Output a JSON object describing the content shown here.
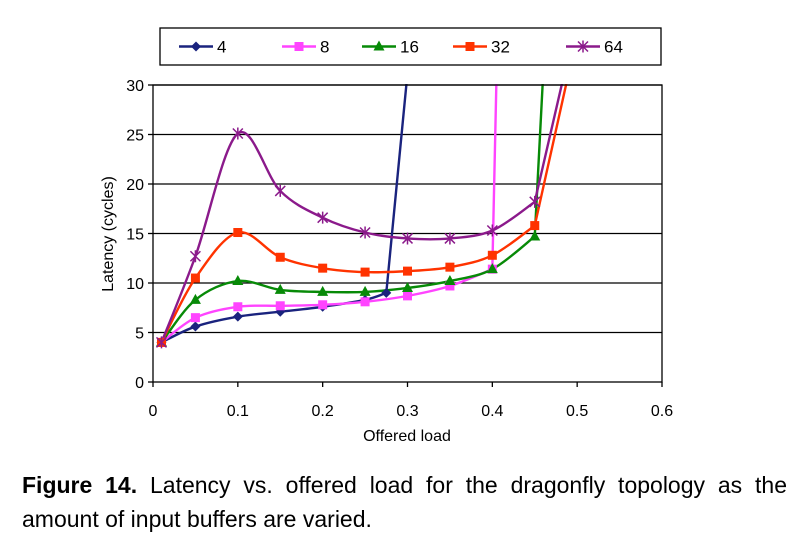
{
  "chart_data": {
    "type": "line",
    "title": "",
    "xlabel": "Offered load",
    "ylabel": "Latency (cycles)",
    "xlim": [
      0,
      0.6
    ],
    "ylim": [
      0,
      30
    ],
    "x_ticks": [
      "0",
      "0.1",
      "0.2",
      "0.3",
      "0.4",
      "0.5",
      "0.6"
    ],
    "y_ticks": [
      "0",
      "5",
      "10",
      "15",
      "20",
      "25",
      "30"
    ],
    "grid": "horizontal",
    "legend_position": "top",
    "series": [
      {
        "name": "4",
        "color": "#1a237e",
        "marker": "diamond",
        "x": [
          0.01,
          0.05,
          0.1,
          0.15,
          0.2,
          0.25,
          0.275,
          0.3
        ],
        "y": [
          4.0,
          5.6,
          6.6,
          7.1,
          7.6,
          8.3,
          9.0,
          30
        ]
      },
      {
        "name": "8",
        "color": "#ff44ff",
        "marker": "square",
        "x": [
          0.01,
          0.05,
          0.1,
          0.15,
          0.2,
          0.25,
          0.3,
          0.35,
          0.4,
          0.405
        ],
        "y": [
          4.0,
          6.5,
          7.6,
          7.7,
          7.8,
          8.1,
          8.7,
          9.7,
          11.4,
          30
        ]
      },
      {
        "name": "16",
        "color": "#078a07",
        "marker": "triangle",
        "x": [
          0.01,
          0.05,
          0.1,
          0.15,
          0.2,
          0.25,
          0.3,
          0.35,
          0.4,
          0.45,
          0.46
        ],
        "y": [
          4.0,
          8.3,
          10.2,
          9.3,
          9.1,
          9.1,
          9.5,
          10.2,
          11.4,
          14.7,
          30
        ]
      },
      {
        "name": "32",
        "color": "#ff3300",
        "marker": "square",
        "x": [
          0.01,
          0.05,
          0.1,
          0.15,
          0.2,
          0.25,
          0.3,
          0.35,
          0.4,
          0.45,
          0.49
        ],
        "y": [
          4.0,
          10.5,
          15.1,
          12.6,
          11.5,
          11.1,
          11.2,
          11.6,
          12.8,
          15.8,
          30
        ]
      },
      {
        "name": "64",
        "color": "#8b1a8b",
        "marker": "star",
        "x": [
          0.01,
          0.05,
          0.1,
          0.15,
          0.2,
          0.25,
          0.3,
          0.35,
          0.4,
          0.45,
          0.485
        ],
        "y": [
          4.0,
          12.7,
          25.1,
          19.3,
          16.6,
          15.1,
          14.5,
          14.5,
          15.3,
          18.2,
          30
        ]
      }
    ]
  },
  "caption": {
    "label": "Figure 14.",
    "text": "Latency vs.  offered load for the dragonfly topology as the amount of input buffers are varied."
  }
}
